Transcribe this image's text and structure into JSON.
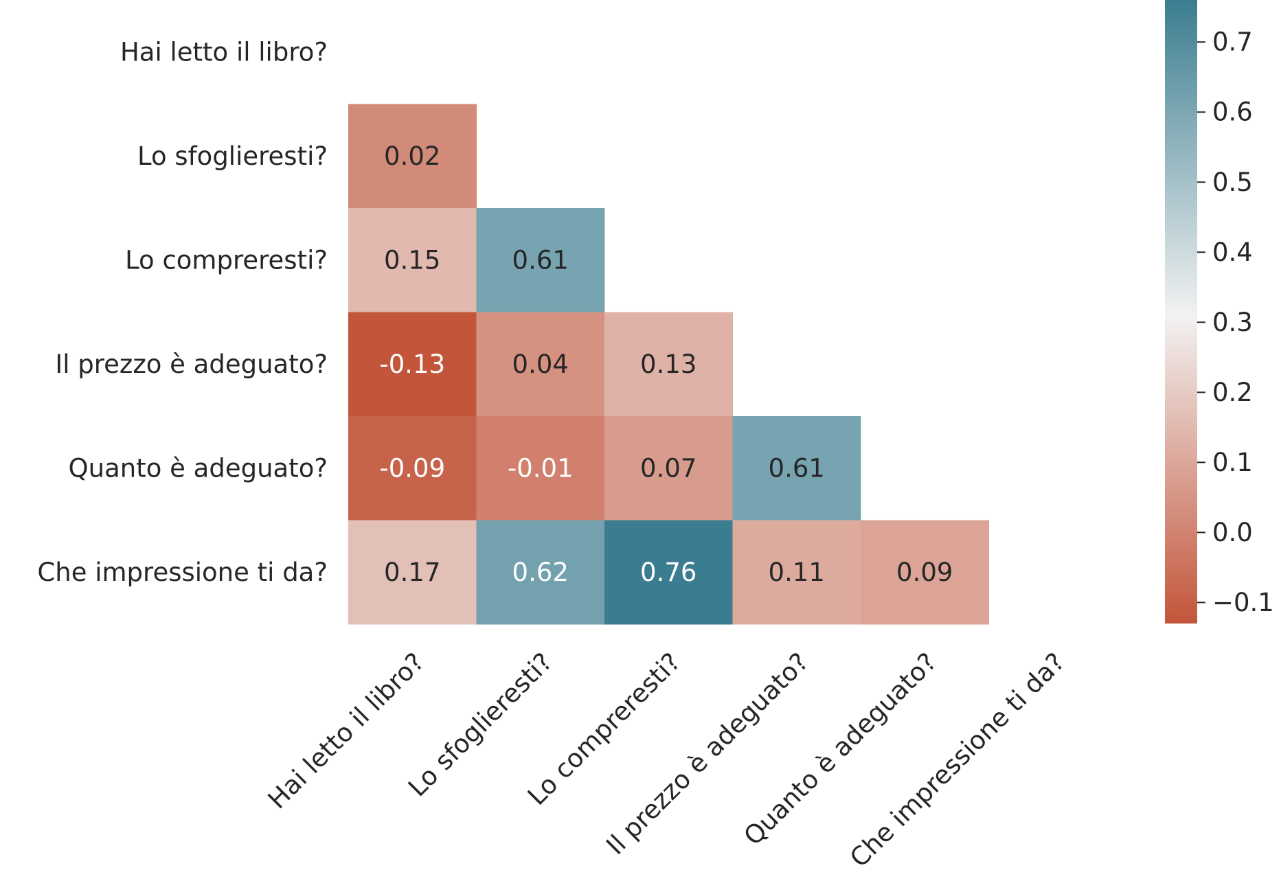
{
  "chart_data": {
    "type": "heatmap",
    "mask": "upper-triangle",
    "labels": [
      "Hai letto il libro?",
      "Lo sfoglieresti?",
      "Lo compreresti?",
      "Il prezzo è adeguato?",
      "Quanto è adeguato?",
      "Che impressione ti da?"
    ],
    "cells": [
      {
        "row": 1,
        "col": 0,
        "value": 0.02,
        "label": "0.02"
      },
      {
        "row": 2,
        "col": 0,
        "value": 0.15,
        "label": "0.15"
      },
      {
        "row": 2,
        "col": 1,
        "value": 0.61,
        "label": "0.61"
      },
      {
        "row": 3,
        "col": 0,
        "value": -0.13,
        "label": "-0.13"
      },
      {
        "row": 3,
        "col": 1,
        "value": 0.04,
        "label": "0.04"
      },
      {
        "row": 3,
        "col": 2,
        "value": 0.13,
        "label": "0.13"
      },
      {
        "row": 4,
        "col": 0,
        "value": -0.09,
        "label": "-0.09"
      },
      {
        "row": 4,
        "col": 1,
        "value": -0.01,
        "label": "-0.01"
      },
      {
        "row": 4,
        "col": 2,
        "value": 0.07,
        "label": "0.07"
      },
      {
        "row": 4,
        "col": 3,
        "value": 0.61,
        "label": "0.61"
      },
      {
        "row": 5,
        "col": 0,
        "value": 0.17,
        "label": "0.17"
      },
      {
        "row": 5,
        "col": 1,
        "value": 0.62,
        "label": "0.62"
      },
      {
        "row": 5,
        "col": 2,
        "value": 0.76,
        "label": "0.76"
      },
      {
        "row": 5,
        "col": 3,
        "value": 0.11,
        "label": "0.11"
      },
      {
        "row": 5,
        "col": 4,
        "value": 0.09,
        "label": "0.09"
      }
    ],
    "colorbar": {
      "vmin": -0.13,
      "vcenter": 0.31,
      "vmax": 0.76,
      "ticks": [
        -0.1,
        0.0,
        0.1,
        0.2,
        0.3,
        0.4,
        0.5,
        0.6,
        0.7
      ],
      "tick_labels": [
        "−0.1",
        "0.0",
        "0.1",
        "0.2",
        "0.3",
        "0.4",
        "0.5",
        "0.6",
        "0.7"
      ],
      "colors": {
        "low": "#c3553a",
        "mid": "#f2f2f2",
        "high": "#3b7d90"
      }
    },
    "annotation_colors": {
      "light": "#ffffff",
      "dark": "#262626"
    }
  }
}
